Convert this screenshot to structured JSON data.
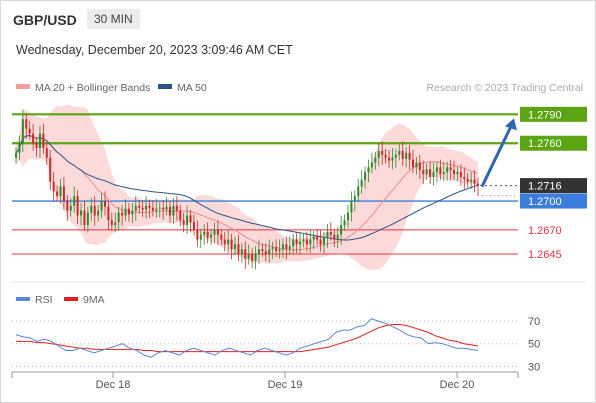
{
  "header": {
    "symbol": "GBP/USD",
    "timeframe": "30 MIN",
    "datetime": "Wednesday, December 20, 2023 3:09:46 AM CET"
  },
  "legend": {
    "ma20_label": "MA 20 + Bollinger Bands",
    "ma50_label": "MA 50",
    "credit": "Research © 2023 Trading Central",
    "rsi_label": "RSI",
    "ma9_label": "9MA"
  },
  "colors": {
    "green": "#5ba513",
    "blue": "#3b7ddd",
    "red": "#e8343f",
    "band_fill": "#fbd3d3",
    "ma20": "#f08c8c",
    "ma50": "#2f5387",
    "bull_candle": "#2e8b2e",
    "bear_candle": "#cc2a2a",
    "arrow": "#2f66b0",
    "current_badge": "#333333",
    "rsi": "#5b86d6",
    "rsi_ma": "#e02020"
  },
  "chart_data": [
    {
      "type": "candlestick",
      "title": "GBP/USD",
      "timeframe": "30 MIN",
      "x_tick_labels": [
        "Dec 18",
        "Dec 19",
        "Dec 20"
      ],
      "ylim": [
        1.2618,
        1.2808
      ],
      "current_price": 1.2716,
      "levels": [
        {
          "value": 1.279,
          "label": "1.2790",
          "style": "resistance"
        },
        {
          "value": 1.276,
          "label": "1.2760",
          "style": "resistance"
        },
        {
          "value": 1.27,
          "label": "1.2700",
          "style": "pivot"
        },
        {
          "value": 1.267,
          "label": "1.2670",
          "style": "support"
        },
        {
          "value": 1.2645,
          "label": "1.2645",
          "style": "support"
        }
      ],
      "forecast_arrow": {
        "from": 1.2715,
        "to": 1.279
      },
      "candles_close": [
        1.275,
        1.276,
        1.2785,
        1.2775,
        1.277,
        1.276,
        1.2755,
        1.277,
        1.2755,
        1.2745,
        1.272,
        1.271,
        1.2705,
        1.2715,
        1.27,
        1.269,
        1.2695,
        1.2705,
        1.2685,
        1.269,
        1.2675,
        1.2688,
        1.2695,
        1.2685,
        1.269,
        1.27,
        1.2694,
        1.268,
        1.2675,
        1.2678,
        1.2688,
        1.2685,
        1.2692,
        1.2686,
        1.269,
        1.2695,
        1.2693,
        1.2691,
        1.2695,
        1.2693,
        1.269,
        1.2692,
        1.2693,
        1.2691,
        1.2694,
        1.2685,
        1.2695,
        1.269,
        1.268,
        1.2675,
        1.2685,
        1.2678,
        1.267,
        1.266,
        1.2665,
        1.2668,
        1.2662,
        1.2665,
        1.267,
        1.2665,
        1.266,
        1.2655,
        1.266,
        1.265,
        1.2655,
        1.2645,
        1.265,
        1.264,
        1.2645,
        1.2638,
        1.2645,
        1.265,
        1.2648,
        1.2645,
        1.265,
        1.2652,
        1.2648,
        1.265,
        1.2655,
        1.265,
        1.2653,
        1.266,
        1.2655,
        1.2658,
        1.266,
        1.2655,
        1.266,
        1.2663,
        1.266,
        1.2655,
        1.2662,
        1.2668,
        1.2665,
        1.266,
        1.2665,
        1.2675,
        1.268,
        1.2688,
        1.27,
        1.2705,
        1.2715,
        1.2722,
        1.273,
        1.2735,
        1.274,
        1.2745,
        1.2752,
        1.2748,
        1.2745,
        1.2742,
        1.2745,
        1.2748,
        1.2752,
        1.2744,
        1.275,
        1.2743,
        1.2735,
        1.274,
        1.2732,
        1.2728,
        1.2733,
        1.2725,
        1.273,
        1.2735,
        1.2728,
        1.273,
        1.2735,
        1.2732,
        1.2728,
        1.273,
        1.2725,
        1.2723,
        1.272,
        1.2722,
        1.2718,
        1.2716
      ],
      "series": [
        {
          "name": "MA 20 + Bollinger Bands"
        },
        {
          "name": "MA 50"
        }
      ]
    },
    {
      "type": "line",
      "title": "RSI",
      "ylim": [
        25,
        78
      ],
      "y_ticks": [
        30,
        50,
        70
      ],
      "series": [
        {
          "name": "RSI",
          "values": [
            58,
            56,
            55,
            52,
            54,
            52,
            48,
            44,
            44,
            46,
            44,
            42,
            44,
            46,
            48,
            50,
            46,
            44,
            40,
            38,
            42,
            44,
            42,
            40,
            44,
            46,
            44,
            42,
            40,
            44,
            46,
            44,
            42,
            40,
            44,
            46,
            44,
            42,
            40,
            42,
            46,
            48,
            50,
            52,
            54,
            60,
            62,
            62,
            65,
            66,
            72,
            70,
            68,
            65,
            62,
            58,
            56,
            55,
            50,
            51,
            50,
            48,
            46,
            46,
            45,
            44
          ]
        },
        {
          "name": "9MA",
          "values": [
            52,
            52,
            52,
            51,
            51,
            50,
            49,
            48,
            47,
            46,
            46,
            45,
            45,
            45,
            45,
            45,
            45,
            45,
            44,
            44,
            43,
            43,
            43,
            43,
            43,
            43,
            43,
            43,
            43,
            43,
            43,
            43,
            43,
            43,
            43,
            43,
            43,
            43,
            43,
            43,
            43,
            44,
            45,
            46,
            47,
            49,
            51,
            53,
            55,
            58,
            61,
            64,
            66,
            67,
            67,
            66,
            64,
            62,
            60,
            57,
            55,
            53,
            52,
            50,
            49,
            48
          ]
        }
      ]
    }
  ]
}
